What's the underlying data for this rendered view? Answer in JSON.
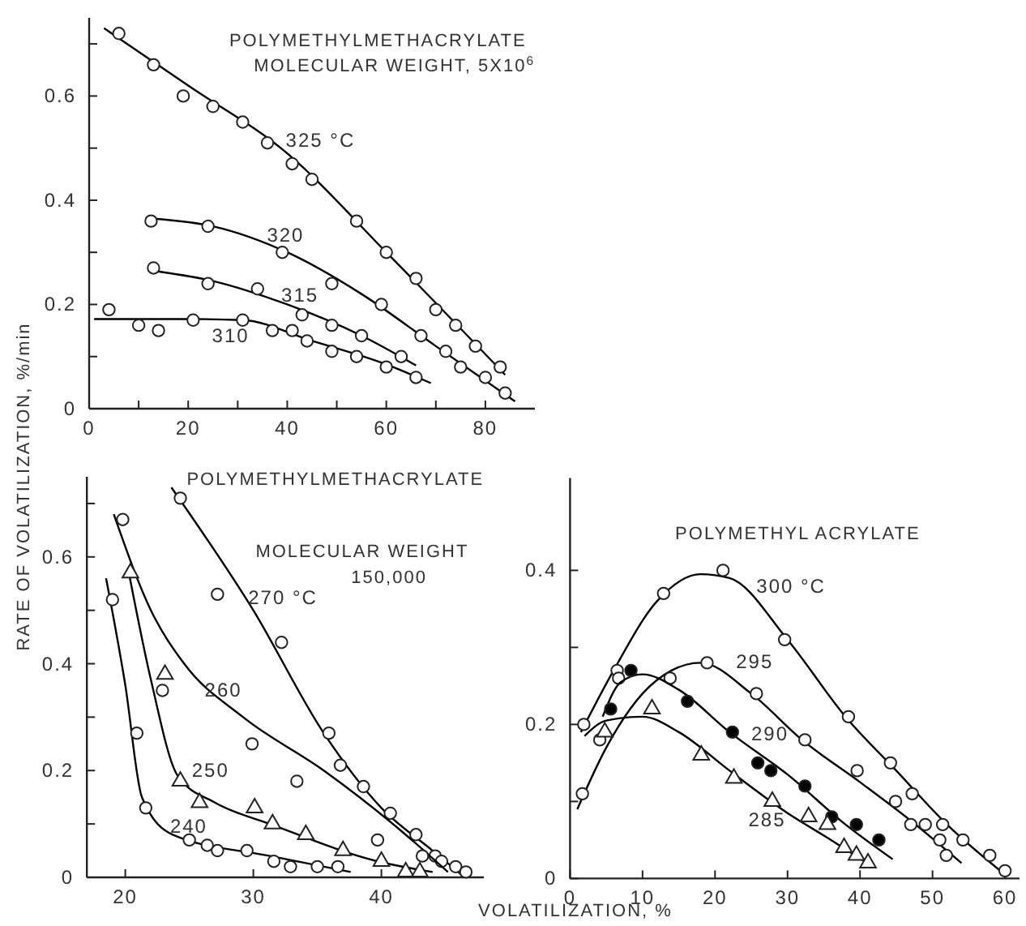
{
  "chart_data": [
    {
      "type": "scatter",
      "title": "POLYMETHYLMETHACRYLATE",
      "subtitle": "MOLECULAR WEIGHT, 5X10$^{6}$",
      "ylabel": "RATE OF VOLATILIZATION, %/min",
      "xlim": [
        0,
        90
      ],
      "ylim": [
        0,
        0.75
      ],
      "xticks": [
        0,
        {
          "value": 10,
          "label": null
        },
        20,
        {
          "value": 30,
          "label": null
        },
        40,
        {
          "value": 50,
          "label": null
        },
        60,
        {
          "value": 70,
          "label": null
        },
        80
      ],
      "yticks": [
        {
          "value": 0,
          "label": "0"
        },
        {
          "value": 0.1,
          "label": null
        },
        {
          "value": 0.2,
          "label": "0.2"
        },
        {
          "value": 0.3,
          "label": null
        },
        {
          "value": 0.4,
          "label": "0.4"
        },
        {
          "value": 0.5,
          "label": null
        },
        {
          "value": 0.6,
          "label": "0.6"
        },
        {
          "value": 0.7,
          "label": null
        }
      ],
      "grid": false,
      "legend": false,
      "series": [
        {
          "type": "line",
          "name": "325 °C",
          "color": "#000000",
          "x": [
            3,
            20,
            40,
            60,
            84
          ],
          "values": [
            0.73,
            0.62,
            0.49,
            0.3,
            0.065
          ]
        },
        {
          "type": "scatter",
          "marker": "circle",
          "color": "#ffffff",
          "x": [
            6,
            13,
            19,
            25,
            31,
            36,
            41,
            45,
            54,
            60,
            66,
            70,
            74,
            78,
            83
          ],
          "values": [
            0.72,
            0.66,
            0.6,
            0.58,
            0.55,
            0.51,
            0.47,
            0.44,
            0.36,
            0.3,
            0.25,
            0.19,
            0.16,
            0.12,
            0.08
          ]
        },
        {
          "type": "line",
          "name": "320",
          "color": "#000000",
          "x": [
            12.5,
            25,
            40,
            55,
            70,
            86
          ],
          "values": [
            0.365,
            0.35,
            0.3,
            0.22,
            0.12,
            0.014
          ]
        },
        {
          "type": "scatter",
          "marker": "circle",
          "color": "#ffffff",
          "x": [
            12.5,
            24,
            39,
            49,
            59,
            67,
            72,
            75,
            80,
            84
          ],
          "values": [
            0.36,
            0.35,
            0.3,
            0.24,
            0.2,
            0.14,
            0.11,
            0.08,
            0.06,
            0.03
          ]
        },
        {
          "type": "line",
          "name": "315",
          "color": "#000000",
          "x": [
            12.7,
            25,
            40,
            55,
            66
          ],
          "values": [
            0.265,
            0.245,
            0.2,
            0.14,
            0.083
          ]
        },
        {
          "type": "scatter",
          "marker": "circle",
          "color": "#ffffff",
          "x": [
            13,
            24,
            34,
            43,
            49,
            55,
            63
          ],
          "values": [
            0.27,
            0.24,
            0.23,
            0.18,
            0.16,
            0.14,
            0.1
          ]
        },
        {
          "type": "line",
          "name": "310",
          "color": "#000000",
          "x": [
            1,
            20,
            31,
            45,
            60,
            69
          ],
          "values": [
            0.172,
            0.172,
            0.17,
            0.13,
            0.085,
            0.049
          ]
        },
        {
          "type": "scatter",
          "marker": "circle",
          "color": "#ffffff",
          "x": [
            4,
            10,
            14,
            21,
            31,
            37,
            41,
            44,
            49,
            54,
            60,
            66
          ],
          "values": [
            0.19,
            0.16,
            0.15,
            0.17,
            0.17,
            0.15,
            0.15,
            0.13,
            0.11,
            0.1,
            0.08,
            0.06
          ]
        }
      ]
    },
    {
      "type": "scatter",
      "title": "POLYMETHYLMETHACRYLATE",
      "subtitle": "MOLECULAR WEIGHT\n150,000",
      "xlabel": "VOLATILIZATION, %",
      "xlim": [
        17,
        48
      ],
      "ylim": [
        0,
        0.75
      ],
      "xticks": [
        20,
        30,
        40
      ],
      "yticks": [
        {
          "value": 0,
          "label": "0"
        },
        {
          "value": 0.1,
          "label": null
        },
        {
          "value": 0.2,
          "label": "0.2"
        },
        {
          "value": 0.3,
          "label": null
        },
        {
          "value": 0.4,
          "label": "0.4"
        },
        {
          "value": 0.5,
          "label": null
        },
        {
          "value": 0.6,
          "label": "0.6"
        },
        {
          "value": 0.7,
          "label": null
        }
      ],
      "grid": false,
      "legend": false,
      "series": [
        {
          "type": "line",
          "name": "270 °C",
          "color": "#000000",
          "x": [
            23.6,
            30,
            35.5,
            40,
            44,
            46.5
          ],
          "values": [
            0.73,
            0.5,
            0.27,
            0.13,
            0.05,
            0
          ]
        },
        {
          "type": "scatter",
          "marker": "circle",
          "color": "#ffffff",
          "x": [
            24.3,
            27.2,
            32.2,
            35.9,
            36.8,
            38.6,
            40.7,
            42.7,
            39.7,
            44.2,
            44.7,
            45.8,
            46.6
          ],
          "values": [
            0.71,
            0.53,
            0.44,
            0.27,
            0.21,
            0.17,
            0.12,
            0.08,
            0.07,
            0.04,
            0.03,
            0.02,
            0.01
          ]
        },
        {
          "type": "line",
          "name": "260",
          "color": "#000000",
          "x": [
            19.1,
            22,
            24.6,
            29.2,
            35.5,
            41.4,
            45.2
          ],
          "values": [
            0.68,
            0.5,
            0.4,
            0.3,
            0.2,
            0.09,
            0.01
          ]
        },
        {
          "type": "scatter",
          "marker": "circle",
          "color": "#ffffff",
          "x": [
            19.8,
            22.9,
            29.9,
            33.4,
            43.2
          ],
          "values": [
            0.67,
            0.35,
            0.25,
            0.18,
            0.04
          ]
        },
        {
          "type": "line",
          "name": "250",
          "color": "#000000",
          "x": [
            20.2,
            22,
            24.1,
            27,
            31.3,
            39.7,
            44
          ],
          "values": [
            0.58,
            0.37,
            0.19,
            0.14,
            0.1,
            0.03,
            0.01
          ]
        },
        {
          "type": "scatter",
          "marker": "triangle",
          "color": "#ffffff",
          "x": [
            20.4,
            23.1,
            24.3,
            25.8,
            30.1,
            31.5,
            34.1,
            37,
            40,
            41.9,
            43
          ],
          "values": [
            0.57,
            0.38,
            0.18,
            0.14,
            0.13,
            0.1,
            0.08,
            0.05,
            0.03,
            0.01,
            0.01
          ]
        },
        {
          "type": "line",
          "name": "240",
          "color": "#000000",
          "x": [
            18.5,
            20,
            21.3,
            23.7,
            31.3,
            37.6
          ],
          "values": [
            0.56,
            0.36,
            0.15,
            0.08,
            0.04,
            0.01
          ]
        },
        {
          "type": "scatter",
          "marker": "circle",
          "color": "#ffffff",
          "x": [
            19,
            20.9,
            21.6,
            25,
            26.4,
            27.2,
            29.5,
            31.6,
            32.9,
            35,
            36.6
          ],
          "values": [
            0.52,
            0.27,
            0.13,
            0.07,
            0.06,
            0.05,
            0.05,
            0.03,
            0.02,
            0.02,
            0.02
          ]
        }
      ]
    },
    {
      "type": "scatter",
      "title": "POLYMETHYL ACRYLATE",
      "xlim": [
        0,
        62
      ],
      "ylim": [
        0,
        0.52
      ],
      "xticks": [
        0,
        10,
        20,
        30,
        40,
        50,
        60
      ],
      "yticks": [
        {
          "value": 0,
          "label": "0"
        },
        {
          "value": 0.1,
          "label": null
        },
        {
          "value": 0.2,
          "label": "0.2"
        },
        {
          "value": 0.3,
          "label": null
        },
        {
          "value": 0.4,
          "label": "0.4"
        }
      ],
      "grid": false,
      "legend": false,
      "series": [
        {
          "type": "line",
          "name": "300 °C",
          "color": "#000000",
          "x": [
            1.5,
            6,
            12,
            18,
            22,
            30,
            38,
            45,
            52,
            60
          ],
          "values": [
            0.19,
            0.27,
            0.36,
            0.395,
            0.39,
            0.31,
            0.21,
            0.14,
            0.07,
            0.005
          ]
        },
        {
          "type": "scatter",
          "marker": "circle",
          "color": "#ffffff",
          "x": [
            1.9,
            6.5,
            12.9,
            21.1,
            29.6,
            38.4,
            44.2,
            47.2,
            51.4,
            54.2,
            57.9,
            60
          ],
          "values": [
            0.2,
            0.27,
            0.37,
            0.4,
            0.31,
            0.21,
            0.15,
            0.11,
            0.07,
            0.05,
            0.03,
            0.01
          ]
        },
        {
          "type": "line",
          "name": "295",
          "color": "#000000",
          "x": [
            1,
            5,
            10,
            14,
            18,
            25,
            32,
            40,
            47,
            54
          ],
          "values": [
            0.09,
            0.17,
            0.24,
            0.27,
            0.28,
            0.24,
            0.18,
            0.125,
            0.075,
            0.02
          ]
        },
        {
          "type": "scatter",
          "marker": "circle",
          "color": "#ffffff",
          "x": [
            1.7,
            4.1,
            6.7,
            13.8,
            18.9,
            25.7,
            32.4,
            39.6,
            44.9,
            47,
            49,
            51,
            51.9
          ],
          "values": [
            0.11,
            0.18,
            0.26,
            0.26,
            0.28,
            0.24,
            0.18,
            0.14,
            0.1,
            0.07,
            0.07,
            0.05,
            0.03
          ]
        },
        {
          "type": "line",
          "name": "290",
          "color": "#000000",
          "x": [
            4.5,
            7,
            10,
            15,
            22,
            30,
            38,
            44.5
          ],
          "values": [
            0.21,
            0.255,
            0.265,
            0.245,
            0.19,
            0.135,
            0.07,
            0.025
          ]
        },
        {
          "type": "scatter",
          "marker": "circle",
          "color": "#000000",
          "x": [
            5.6,
            8.4,
            16.2,
            22.4,
            25.9,
            27.7,
            32.4,
            36.1,
            39.5,
            42.6
          ],
          "values": [
            0.22,
            0.27,
            0.23,
            0.19,
            0.15,
            0.14,
            0.12,
            0.08,
            0.07,
            0.05
          ]
        },
        {
          "type": "line",
          "name": "285",
          "color": "#000000",
          "x": [
            2,
            5,
            10,
            15,
            22,
            30,
            36,
            41
          ],
          "values": [
            0.185,
            0.205,
            0.21,
            0.19,
            0.14,
            0.085,
            0.05,
            0.02
          ]
        },
        {
          "type": "scatter",
          "marker": "triangle",
          "color": "#ffffff",
          "x": [
            4.8,
            11.3,
            18.1,
            22.6,
            27.9,
            32.9,
            35.5,
            37.8,
            39.5,
            41.1
          ],
          "values": [
            0.19,
            0.22,
            0.16,
            0.13,
            0.1,
            0.08,
            0.07,
            0.04,
            0.03,
            0.02
          ]
        }
      ]
    }
  ]
}
